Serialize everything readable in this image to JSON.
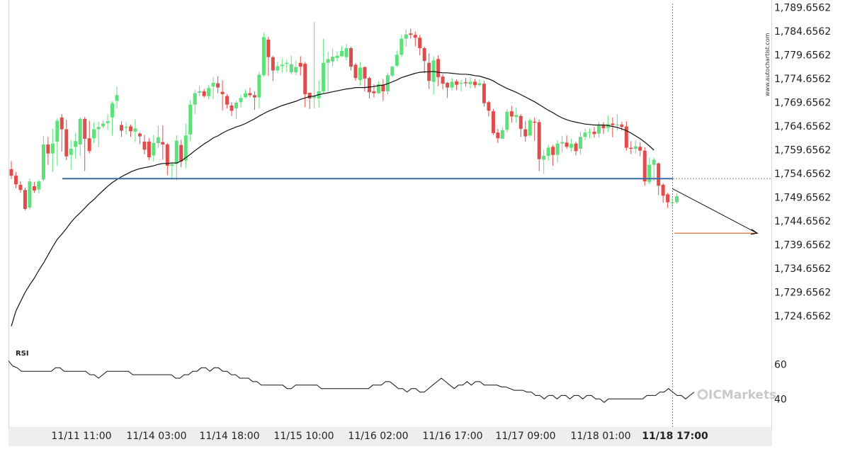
{
  "watermark": "www.autochartist.com",
  "brand": {
    "text": "ICMarkets",
    "color": "#c9c9c9"
  },
  "colors": {
    "up": "#5ee07a",
    "down": "#e04b4b",
    "ma": "#111111",
    "level_line": "#3f6aa6",
    "target_line": "#e0703a",
    "rsi": "#111111",
    "grid": "#f0f0f0",
    "background": "#ffffff",
    "text": "#222222"
  },
  "chart_data": {
    "type": "candlestick",
    "title": "",
    "x_ticks": [
      "11/11 11:00",
      "11/14 03:00",
      "11/14 18:00",
      "11/15 10:00",
      "11/16 02:00",
      "11/16 17:00",
      "11/17 09:00",
      "11/18 01:00",
      "11/18 17:00"
    ],
    "highlight_tick": "11/18 17:00",
    "y_ticks": [
      "1,789.6562",
      "1,784.6562",
      "1,779.6562",
      "1,774.6562",
      "1,769.6562",
      "1,764.6562",
      "1,759.6562",
      "1,754.6562",
      "1,749.6562",
      "1,744.6562",
      "1,739.6562",
      "1,734.6562",
      "1,729.6562",
      "1,724.6562"
    ],
    "ylim": [
      1719.6,
      1790.5
    ],
    "breakout_level": 1753.6,
    "target_level": 1742.1,
    "grid": false,
    "candles": [
      [
        1755.6,
        1754.2,
        1757.3,
        1753.5
      ],
      [
        1754.2,
        1752.4,
        1755.0,
        1751.6
      ],
      [
        1752.3,
        1751.2,
        1753.0,
        1750.6
      ],
      [
        1751.2,
        1747.2,
        1751.7,
        1746.9
      ],
      [
        1747.5,
        1753.0,
        1753.6,
        1747.1
      ],
      [
        1752.0,
        1751.1,
        1752.9,
        1750.6
      ],
      [
        1751.3,
        1753.0,
        1753.4,
        1750.5
      ],
      [
        1753.4,
        1760.8,
        1762.5,
        1753.0
      ],
      [
        1760.8,
        1758.9,
        1762.4,
        1756.5
      ],
      [
        1758.9,
        1761.0,
        1764.1,
        1755.0
      ],
      [
        1761.4,
        1765.8,
        1766.3,
        1756.3
      ],
      [
        1766.5,
        1764.0,
        1767.2,
        1759.3
      ],
      [
        1764.0,
        1758.3,
        1766.0,
        1757.5
      ],
      [
        1758.6,
        1759.9,
        1761.7,
        1755.5
      ],
      [
        1760.3,
        1761.5,
        1763.3,
        1757.7
      ],
      [
        1760.8,
        1766.2,
        1766.5,
        1758.4
      ],
      [
        1766.2,
        1762.0,
        1766.6,
        1755.2
      ],
      [
        1762.1,
        1759.4,
        1765.8,
        1758.9
      ],
      [
        1762.1,
        1764.0,
        1765.5,
        1761.1
      ],
      [
        1764.0,
        1764.5,
        1765.6,
        1760.3
      ],
      [
        1764.6,
        1765.2,
        1765.8,
        1764.2
      ],
      [
        1765.3,
        1765.7,
        1767.2,
        1763.9
      ],
      [
        1766.5,
        1769.5,
        1769.9,
        1762.7
      ],
      [
        1770.0,
        1771.2,
        1773.0,
        1768.4
      ],
      [
        1764.9,
        1763.7,
        1765.7,
        1762.4
      ],
      [
        1764.3,
        1764.5,
        1765.5,
        1762.9
      ],
      [
        1764.6,
        1763.6,
        1765.0,
        1762.4
      ],
      [
        1763.5,
        1764.2,
        1766.1,
        1761.3
      ],
      [
        1763.1,
        1762.5,
        1763.4,
        1760.9
      ],
      [
        1761.4,
        1759.7,
        1762.8,
        1758.7
      ],
      [
        1761.4,
        1758.1,
        1762.1,
        1757.5
      ],
      [
        1758.5,
        1761.1,
        1762.8,
        1757.2
      ],
      [
        1761.1,
        1762.3,
        1764.8,
        1760.1
      ],
      [
        1761.3,
        1760.8,
        1764.8,
        1757.6
      ],
      [
        1760.8,
        1756.3,
        1761.1,
        1754.3
      ],
      [
        1756.3,
        1756.6,
        1757.1,
        1753.5
      ],
      [
        1756.7,
        1761.6,
        1762.7,
        1753.3
      ],
      [
        1760.7,
        1757.2,
        1761.8,
        1756.0
      ],
      [
        1757.4,
        1762.7,
        1765.2,
        1755.8
      ],
      [
        1762.9,
        1769.2,
        1770.2,
        1761.5
      ],
      [
        1769.2,
        1771.6,
        1772.3,
        1767.2
      ],
      [
        1771.7,
        1772.0,
        1773.1,
        1771.0
      ],
      [
        1772.0,
        1771.0,
        1772.5,
        1770.7
      ],
      [
        1771.0,
        1772.7,
        1773.3,
        1770.3
      ],
      [
        1773.0,
        1773.8,
        1775.0,
        1770.3
      ],
      [
        1773.7,
        1772.8,
        1775.2,
        1771.6
      ],
      [
        1771.9,
        1771.4,
        1774.3,
        1768.0
      ],
      [
        1771.0,
        1769.2,
        1771.4,
        1768.4
      ],
      [
        1769.0,
        1767.9,
        1769.7,
        1766.8
      ],
      [
        1768.4,
        1769.6,
        1770.0,
        1766.1
      ],
      [
        1769.7,
        1770.6,
        1771.2,
        1768.6
      ],
      [
        1770.8,
        1771.6,
        1772.4,
        1770.5
      ],
      [
        1771.6,
        1771.2,
        1772.8,
        1770.7
      ],
      [
        1771.2,
        1770.7,
        1772.0,
        1768.1
      ],
      [
        1770.7,
        1775.5,
        1776.1,
        1768.4
      ],
      [
        1775.4,
        1783.4,
        1784.3,
        1775.1
      ],
      [
        1782.9,
        1779.2,
        1783.5,
        1775.2
      ],
      [
        1779.2,
        1776.4,
        1779.5,
        1774.2
      ],
      [
        1776.4,
        1777.3,
        1778.2,
        1775.9
      ],
      [
        1777.3,
        1777.6,
        1778.9,
        1776.0
      ],
      [
        1777.8,
        1778.0,
        1778.6,
        1776.1
      ],
      [
        1776.0,
        1777.7,
        1779.5,
        1775.6
      ],
      [
        1776.0,
        1777.1,
        1778.4,
        1775.4
      ],
      [
        1778.0,
        1777.2,
        1779.4,
        1775.3
      ],
      [
        1777.8,
        1771.4,
        1778.2,
        1768.7
      ],
      [
        1771.7,
        1770.5,
        1771.6,
        1768.3
      ],
      [
        1770.6,
        1770.9,
        1786.6,
        1768.4
      ],
      [
        1770.5,
        1772.0,
        1774.3,
        1768.5
      ],
      [
        1772.0,
        1778.0,
        1783.1,
        1771.6
      ],
      [
        1778.0,
        1778.8,
        1780.3,
        1772.0
      ],
      [
        1778.3,
        1779.3,
        1781.0,
        1777.3
      ],
      [
        1779.0,
        1779.5,
        1780.4,
        1778.3
      ],
      [
        1779.4,
        1780.5,
        1781.5,
        1779.2
      ],
      [
        1779.2,
        1781.1,
        1782.0,
        1778.5
      ],
      [
        1781.1,
        1777.2,
        1781.4,
        1776.4
      ],
      [
        1777.6,
        1774.8,
        1778.0,
        1774.2
      ],
      [
        1774.4,
        1777.0,
        1778.2,
        1773.2
      ],
      [
        1777.1,
        1774.7,
        1777.3,
        1772.0
      ],
      [
        1774.8,
        1771.8,
        1775.1,
        1770.5
      ],
      [
        1772.0,
        1771.6,
        1773.5,
        1770.7
      ],
      [
        1771.6,
        1773.5,
        1774.1,
        1771.5
      ],
      [
        1773.4,
        1772.0,
        1774.6,
        1770.0
      ],
      [
        1772.0,
        1775.4,
        1775.9,
        1771.4
      ],
      [
        1775.3,
        1777.2,
        1777.4,
        1775.0
      ],
      [
        1777.4,
        1779.7,
        1780.6,
        1777.1
      ],
      [
        1779.7,
        1783.1,
        1783.9,
        1779.2
      ],
      [
        1783.1,
        1784.0,
        1785.0,
        1781.4
      ],
      [
        1784.2,
        1783.9,
        1785.2,
        1783.1
      ],
      [
        1783.9,
        1783.3,
        1784.6,
        1781.5
      ],
      [
        1783.3,
        1781.1,
        1783.9,
        1779.6
      ],
      [
        1781.1,
        1778.4,
        1781.4,
        1775.8
      ],
      [
        1778.0,
        1774.2,
        1780.0,
        1772.5
      ],
      [
        1774.0,
        1778.5,
        1779.4,
        1771.3
      ],
      [
        1778.8,
        1775.0,
        1779.6,
        1773.1
      ],
      [
        1775.1,
        1773.6,
        1775.6,
        1772.4
      ],
      [
        1773.8,
        1772.8,
        1774.0,
        1770.6
      ],
      [
        1772.8,
        1774.0,
        1774.8,
        1772.2
      ],
      [
        1774.1,
        1773.4,
        1774.5,
        1772.3
      ],
      [
        1773.6,
        1773.8,
        1774.4,
        1772.0
      ],
      [
        1773.9,
        1773.7,
        1774.8,
        1773.0
      ],
      [
        1773.5,
        1774.0,
        1775.0,
        1772.6
      ],
      [
        1774.0,
        1773.3,
        1774.6,
        1772.7
      ],
      [
        1773.3,
        1773.7,
        1774.5,
        1773.0
      ],
      [
        1773.6,
        1769.5,
        1774.2,
        1768.8
      ],
      [
        1769.7,
        1767.9,
        1770.0,
        1766.7
      ],
      [
        1767.8,
        1763.2,
        1768.3,
        1762.8
      ],
      [
        1763.3,
        1762.1,
        1764.1,
        1761.1
      ],
      [
        1762.0,
        1763.8,
        1764.5,
        1762.6
      ],
      [
        1763.9,
        1767.7,
        1768.2,
        1763.3
      ],
      [
        1767.8,
        1766.7,
        1768.9,
        1765.4
      ],
      [
        1766.6,
        1767.0,
        1768.6,
        1765.3
      ],
      [
        1766.8,
        1764.1,
        1767.2,
        1762.4
      ],
      [
        1764.0,
        1762.5,
        1765.8,
        1761.4
      ],
      [
        1762.7,
        1765.9,
        1766.3,
        1762.4
      ],
      [
        1765.6,
        1765.4,
        1766.5,
        1761.6
      ],
      [
        1765.5,
        1757.7,
        1766.0,
        1755.2
      ],
      [
        1757.6,
        1758.4,
        1759.7,
        1754.6
      ],
      [
        1758.4,
        1760.1,
        1760.7,
        1757.4
      ],
      [
        1760.3,
        1758.6,
        1760.7,
        1756.3
      ],
      [
        1758.6,
        1761.0,
        1761.7,
        1757.0
      ],
      [
        1761.0,
        1761.3,
        1762.6,
        1759.2
      ],
      [
        1761.2,
        1760.3,
        1762.7,
        1759.9
      ],
      [
        1760.1,
        1760.9,
        1762.0,
        1759.3
      ],
      [
        1761.0,
        1759.4,
        1761.4,
        1758.5
      ],
      [
        1759.9,
        1762.4,
        1763.5,
        1758.7
      ],
      [
        1762.4,
        1763.3,
        1764.1,
        1761.7
      ],
      [
        1763.3,
        1763.4,
        1764.2,
        1762.1
      ],
      [
        1763.5,
        1763.0,
        1764.5,
        1762.2
      ],
      [
        1763.1,
        1764.8,
        1765.6,
        1762.2
      ],
      [
        1764.8,
        1764.2,
        1765.5,
        1763.0
      ],
      [
        1764.3,
        1765.1,
        1766.9,
        1763.4
      ],
      [
        1765.2,
        1764.9,
        1766.5,
        1762.3
      ],
      [
        1764.9,
        1765.0,
        1767.2,
        1763.7
      ],
      [
        1765.0,
        1764.5,
        1765.6,
        1763.7
      ],
      [
        1764.6,
        1760.1,
        1765.7,
        1759.5
      ],
      [
        1760.1,
        1759.9,
        1761.5,
        1758.8
      ],
      [
        1759.9,
        1760.4,
        1761.7,
        1758.9
      ],
      [
        1760.3,
        1759.5,
        1761.3,
        1758.3
      ],
      [
        1759.5,
        1753.0,
        1760.2,
        1752.1
      ],
      [
        1752.9,
        1756.5,
        1758.0,
        1752.4
      ],
      [
        1756.5,
        1757.6,
        1758.0,
        1753.1
      ],
      [
        1756.8,
        1752.1,
        1757.0,
        1750.2
      ],
      [
        1752.3,
        1750.0,
        1752.6,
        1748.5
      ],
      [
        1750.3,
        1748.6,
        1750.6,
        1747.4
      ],
      [
        1748.5,
        1748.6,
        1749.5,
        1747.5
      ],
      [
        1748.6,
        1749.9,
        1750.5,
        1748.3
      ]
    ],
    "moving_average": [
      1722.5,
      1725.7,
      1727.7,
      1729.6,
      1731.2,
      1732.6,
      1734.3,
      1735.8,
      1737.5,
      1739.2,
      1740.8,
      1741.9,
      1743.1,
      1744.4,
      1745.5,
      1746.4,
      1747.4,
      1748.4,
      1749.2,
      1750.2,
      1751.1,
      1752.0,
      1752.8,
      1753.4,
      1754.0,
      1754.5,
      1755.0,
      1755.4,
      1755.7,
      1755.9,
      1756.1,
      1756.3,
      1756.6,
      1756.8,
      1756.8,
      1756.9,
      1756.9,
      1757.3,
      1758.0,
      1758.7,
      1759.5,
      1760.2,
      1760.9,
      1761.5,
      1762.2,
      1762.6,
      1763.2,
      1763.7,
      1764.1,
      1764.5,
      1764.8,
      1765.2,
      1765.7,
      1766.2,
      1766.8,
      1767.3,
      1767.8,
      1768.2,
      1768.6,
      1769.0,
      1769.3,
      1769.6,
      1769.9,
      1770.3,
      1770.6,
      1770.9,
      1771.0,
      1771.3,
      1771.5,
      1771.7,
      1771.9,
      1772.1,
      1772.3,
      1772.5,
      1772.6,
      1772.8,
      1772.8,
      1772.8,
      1772.9,
      1773.0,
      1773.2,
      1773.3,
      1773.6,
      1774.0,
      1774.4,
      1774.9,
      1775.2,
      1775.5,
      1775.8,
      1776.0,
      1776.1,
      1776.1,
      1776.2,
      1776.0,
      1775.9,
      1775.9,
      1775.8,
      1775.7,
      1775.6,
      1775.6,
      1775.5,
      1775.3,
      1775.2,
      1774.9,
      1774.6,
      1774.2,
      1773.6,
      1773.1,
      1772.6,
      1772.2,
      1771.8,
      1771.3,
      1770.8,
      1770.3,
      1769.8,
      1769.2,
      1768.6,
      1768.0,
      1767.5,
      1766.9,
      1766.4,
      1766.0,
      1765.7,
      1765.5,
      1765.3,
      1765.1,
      1765.0,
      1764.9,
      1764.9,
      1764.9,
      1764.8,
      1764.6,
      1764.4,
      1764.1,
      1763.7,
      1763.2,
      1762.6,
      1762.0,
      1761.3,
      1760.5,
      1759.6
    ],
    "rsi": {
      "label": "RSI",
      "y_ticks": [
        "60",
        "40"
      ],
      "ylim": [
        25,
        70
      ],
      "values": [
        62,
        59,
        58,
        56,
        56,
        56,
        56,
        56,
        56,
        56,
        56,
        58,
        58,
        56,
        56,
        56,
        56,
        56,
        56,
        54,
        54,
        52,
        54,
        56,
        56,
        56,
        56,
        56,
        56,
        54,
        54,
        54,
        54,
        54,
        54,
        54,
        54,
        54,
        54,
        52,
        52,
        54,
        54,
        56,
        56,
        58,
        58,
        56,
        58,
        58,
        56,
        56,
        54,
        54,
        52,
        52,
        52,
        50,
        50,
        48,
        48,
        48,
        48,
        48,
        48,
        46,
        46,
        48,
        48,
        48,
        48,
        48,
        48,
        46,
        46,
        46,
        46,
        46,
        46,
        46,
        46,
        46,
        46,
        46,
        46,
        48,
        48,
        48,
        50,
        50,
        48,
        46,
        46,
        44,
        46,
        46,
        44,
        44,
        46,
        48,
        50,
        52,
        50,
        48,
        46,
        48,
        48,
        50,
        48,
        50,
        50,
        48,
        48,
        48,
        48,
        47,
        47,
        46,
        45,
        45,
        45,
        44,
        44,
        42,
        42,
        40,
        42,
        42,
        40,
        42,
        42,
        40,
        42,
        42,
        40,
        42,
        42,
        40,
        40,
        38,
        40,
        40,
        40,
        40,
        40,
        40,
        40,
        40,
        40,
        42,
        42,
        42,
        44,
        44,
        46,
        44,
        42,
        42,
        40,
        42,
        44
      ]
    }
  }
}
